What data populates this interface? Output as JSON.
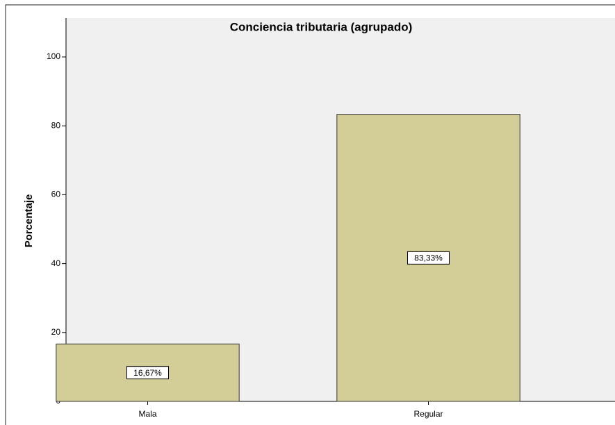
{
  "chart_data": {
    "type": "bar",
    "title": "Conciencia tributaria (agrupado)",
    "y_label": "Porcentaje",
    "categories": [
      "Mala",
      "Regular"
    ],
    "values": [
      16.67,
      83.33
    ],
    "value_labels": [
      "16,67%",
      "83,33%"
    ],
    "color": "#d3ce97",
    "ylim": [
      0,
      100
    ],
    "yticks": [
      0,
      20,
      40,
      60,
      80,
      100
    ]
  }
}
